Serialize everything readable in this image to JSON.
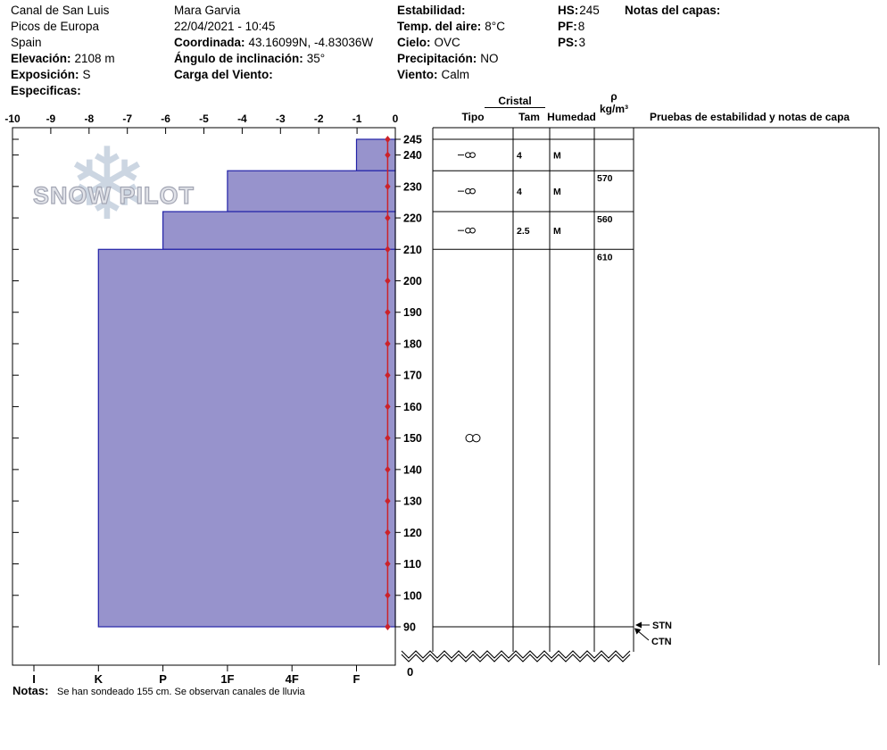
{
  "header": {
    "location": {
      "site": "Canal de San Luis",
      "range": "Picos de Europa",
      "country": "Spain",
      "elevation_label": "Elevación:",
      "elevation_value": "2108 m",
      "aspect_label": "Exposición:",
      "aspect_value": "S",
      "specifics_label": "Especificas:"
    },
    "observer": {
      "name": "Mara Garvia",
      "datetime": "22/04/2021 - 10:45",
      "coords_label": "Coordinada:",
      "coords_value": "43.16099N, -4.83036W",
      "angle_label": "Ángulo de inclinación:",
      "angle_value": "35°",
      "windload_label": "Carga del Viento:",
      "windload_value": ""
    },
    "weather": {
      "stability_label": "Estabilidad:",
      "stability_value": "",
      "airtemp_label": "Temp. del aire:",
      "airtemp_value": "8°C",
      "sky_label": "Cielo:",
      "sky_value": "OVC",
      "precip_label": "Precipitación:",
      "precip_value": "NO",
      "wind_label": "Viento:",
      "wind_value": "Calm"
    },
    "totals": {
      "hs_label": "HS:",
      "hs_value": "245",
      "pf_label": "PF:",
      "pf_value": "8",
      "ps_label": "PS:",
      "ps_value": "3"
    },
    "layer_notes_label": "Notas del capas:"
  },
  "watermark": {
    "text": "SNOW PILOT",
    "icon": "snowflake"
  },
  "table": {
    "headers": {
      "cristal": "Cristal",
      "tipo": "Tipo",
      "tam": "Tam",
      "humedad": "Humedad",
      "rho_symbol": "ρ",
      "rho_units": "kg/m³"
    },
    "stability_header": "Pruebas de estabilidad y notas de capa"
  },
  "chart_data": {
    "type": "snow-profile",
    "temp_axis": {
      "min": -10,
      "max": 0,
      "ticks": [
        -10,
        -9,
        -8,
        -7,
        -6,
        -5,
        -4,
        -3,
        -2,
        -1,
        0
      ]
    },
    "depth_axis": {
      "unit": "cm",
      "surface_depth": 245,
      "pit_bottom_depth": 90,
      "ground": 0,
      "tick_labels": [
        245,
        240,
        230,
        220,
        210,
        200,
        190,
        180,
        170,
        160,
        150,
        140,
        130,
        120,
        110,
        100,
        90
      ]
    },
    "hardness_axis": {
      "categories": [
        "I",
        "K",
        "P",
        "1F",
        "4F",
        "F"
      ]
    },
    "layers": [
      {
        "top_cm": 245,
        "bottom_cm": 235,
        "hardness": "F",
        "grain_type": "MF",
        "grain_size_mm": "4",
        "moisture": "M",
        "density_kg_m3": ""
      },
      {
        "top_cm": 235,
        "bottom_cm": 222,
        "hardness": "1F",
        "grain_type": "MF",
        "grain_size_mm": "4",
        "moisture": "M",
        "density_kg_m3": "570"
      },
      {
        "top_cm": 222,
        "bottom_cm": 210,
        "hardness": "P",
        "grain_type": "MF",
        "grain_size_mm": "2.5",
        "moisture": "M",
        "density_kg_m3": "560"
      },
      {
        "top_cm": 210,
        "bottom_cm": 90,
        "hardness": "K",
        "grain_type": "MF",
        "grain_size_mm": "",
        "moisture": "",
        "density_kg_m3": "610",
        "symbol_at_depth_cm": 150
      }
    ],
    "temperature_profile": {
      "depths_cm": [
        245,
        240,
        230,
        220,
        210,
        200,
        190,
        180,
        170,
        160,
        150,
        140,
        130,
        120,
        110,
        100,
        90
      ],
      "temps_c": [
        -0.2,
        -0.2,
        -0.2,
        -0.2,
        -0.2,
        -0.2,
        -0.2,
        -0.2,
        -0.2,
        -0.2,
        -0.2,
        -0.2,
        -0.2,
        -0.2,
        -0.2,
        -0.2,
        -0.2
      ]
    },
    "stability_tests": [
      {
        "label": "STN",
        "depth_cm": 90
      },
      {
        "label": "CTN",
        "depth_cm": 90
      }
    ],
    "colors": {
      "bar_fill": "#9793cc",
      "bar_border": "#2323a8",
      "temp_line": "#cc2229"
    }
  },
  "footer": {
    "notes_label": "Notas:",
    "notes_text": "Se han sondeado 155 cm. Se observan canales de lluvia"
  }
}
